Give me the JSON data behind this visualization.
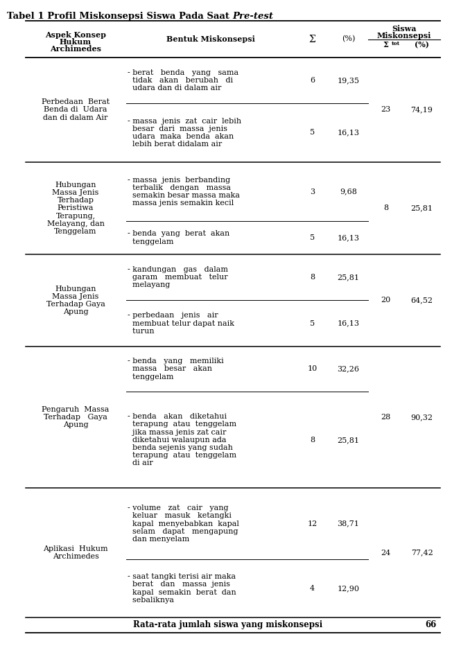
{
  "title_normal": "Tabel 1 Profil Miskonsepsi Siswa Pada Saat ",
  "title_italic": "Pre-test",
  "footer_text": "Rata-rata jumlah siswa yang miskonsepsi",
  "footer_value": "66",
  "font_size": 8.0,
  "title_font_size": 9.5,
  "bg_color": "#ffffff",
  "text_color": "#000000",
  "rows": [
    {
      "aspek": "Perbedaan  Berat\nBenda di  Udara\ndan di dalam Air",
      "items": [
        {
          "text": "- berat   benda   yang   sama\n  tidak   akan   berubah   di\n  udara dan di dalam air",
          "sigma": "6",
          "pct": "19,35"
        },
        {
          "text": "- massa  jenis  zat  cair  lebih\n  besar  dari  massa  jenis\n  udara  maka  benda  akan\n  lebih berat didalam air",
          "sigma": "5",
          "pct": "16,13"
        }
      ],
      "sigma_tot": "23",
      "pct_tot": "74,19"
    },
    {
      "aspek": "Hubungan\nMassa Jenis\nTerhadap\nPeristiwa\nTerapung,\nMelayang, dan\nTenggelam",
      "items": [
        {
          "text": "- massa  jenis  berbanding\n  terbalik   dengan   massa\n  semakin besar massa maka\n  massa jenis semakin kecil",
          "sigma": "3",
          "pct": "9,68"
        },
        {
          "text": "- benda  yang  berat  akan\n  tenggelam",
          "sigma": "5",
          "pct": "16,13"
        }
      ],
      "sigma_tot": "8",
      "pct_tot": "25,81"
    },
    {
      "aspek": "Hubungan\nMassa Jenis\nTerhadap Gaya\nApung",
      "items": [
        {
          "text": "- kandungan   gas   dalam\n  garam   membuat   telur\n  melayang",
          "sigma": "8",
          "pct": "25,81"
        },
        {
          "text": "- perbedaan   jenis   air\n  membuat telur dapat naik\n  turun",
          "sigma": "5",
          "pct": "16,13"
        }
      ],
      "sigma_tot": "20",
      "pct_tot": "64,52"
    },
    {
      "aspek": "Pengaruh  Massa\nTerhadap   Gaya\nApung",
      "items": [
        {
          "text": "- benda   yang   memiliki\n  massa   besar   akan\n  tenggelam",
          "sigma": "10",
          "pct": "32,26"
        },
        {
          "text": "- benda   akan   diketahui\n  terapung  atau  tenggelam\n  jika massa jenis zat cair\n  diketahui walaupun ada\n  benda sejenis yang sudah\n  terapung  atau  tenggelam\n  di air",
          "sigma": "8",
          "pct": "25,81"
        }
      ],
      "sigma_tot": "28",
      "pct_tot": "90,32"
    },
    {
      "aspek": "Aplikasi  Hukum\nArchimedes",
      "items": [
        {
          "text": "- volume   zat   cair   yang\n  keluar   masuk   ketangki\n  kapal  menyebabkan  kapal\n  selam   dapat   mengapung\n  dan menyelam",
          "sigma": "12",
          "pct": "38,71"
        },
        {
          "text": "- saat tangki terisi air maka\n  berat   dan   massa  jenis\n  kapal  semakin  berat  dan\n  sebaliknya",
          "sigma": "4",
          "pct": "12,90"
        }
      ],
      "sigma_tot": "24",
      "pct_tot": "77,42"
    }
  ]
}
